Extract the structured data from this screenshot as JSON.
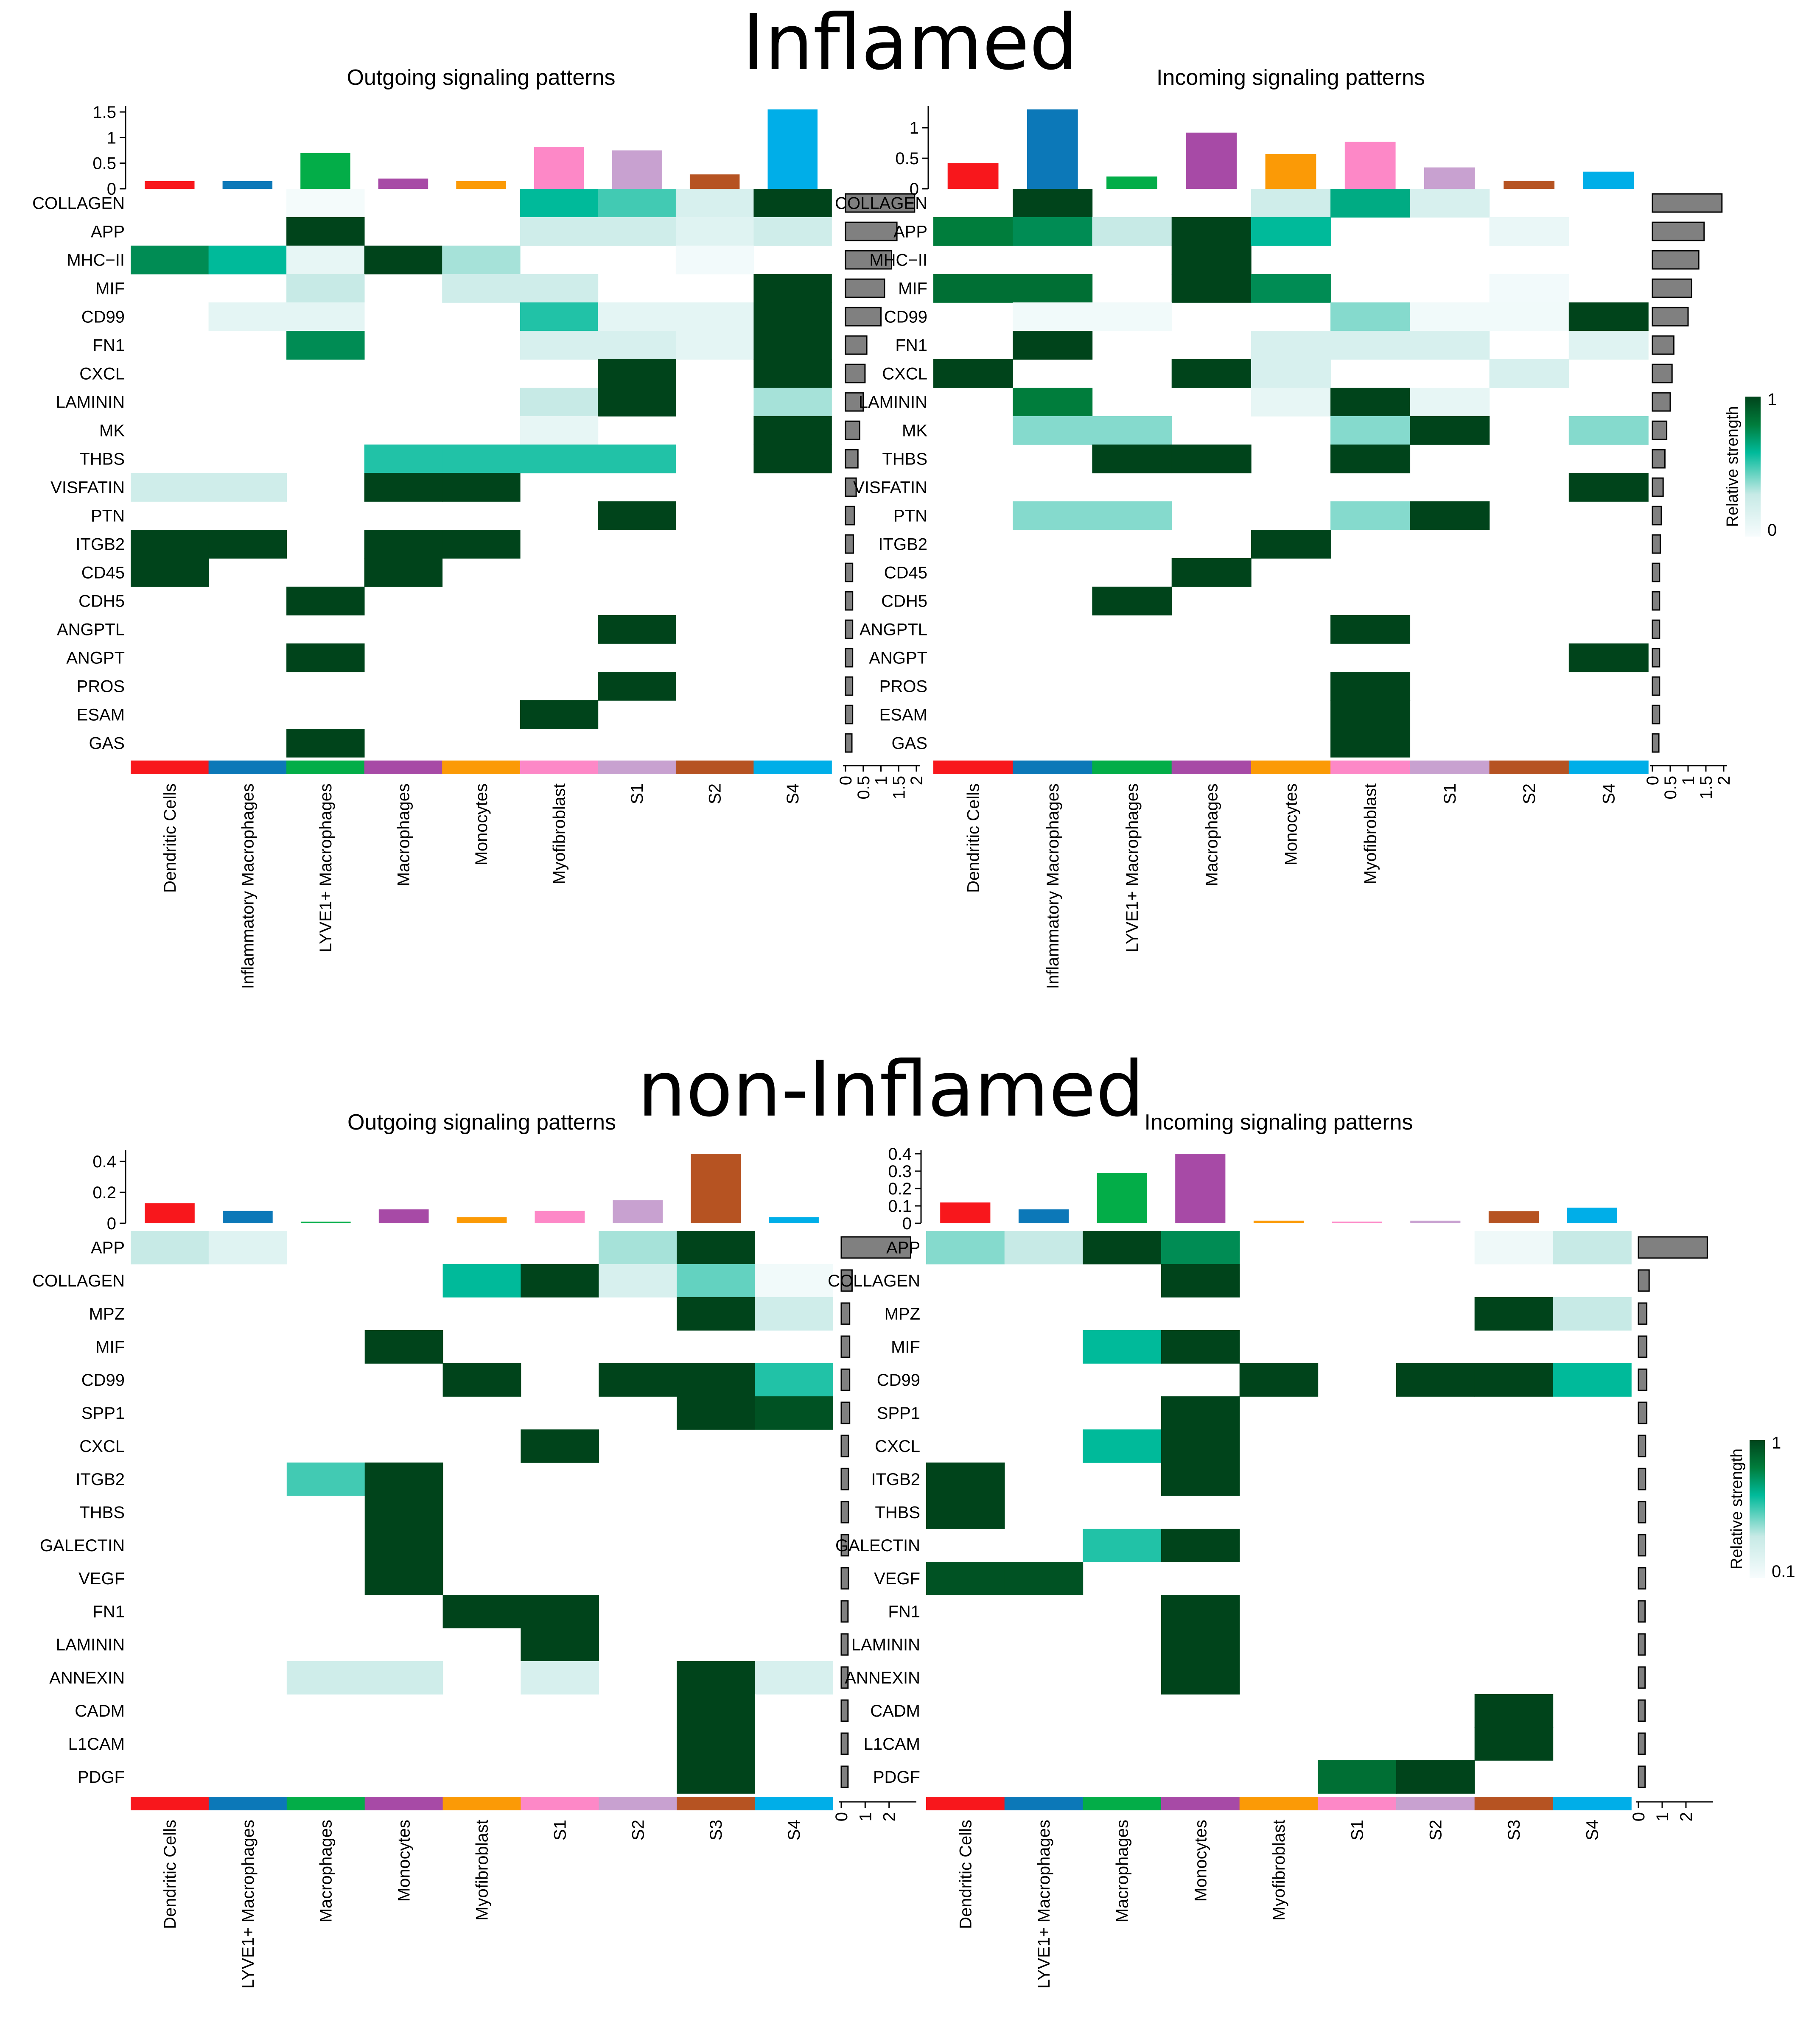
{
  "colors": {
    "scale": [
      "#F7FCFD",
      "#C7EAE6",
      "#00BA9A",
      "#007D3C",
      "#00441B"
    ],
    "row_bar": "#808080"
  },
  "chart_data": [
    {
      "id": "inflamed-outgoing",
      "section_title": "Inflamed",
      "type": "heatmap",
      "title": "Outgoing signaling patterns",
      "columns": [
        "Dendritic Cells",
        "Inflammatory Macrophages",
        "LYVE1+ Macrophages",
        "Macrophages",
        "Monocytes",
        "Myofibroblast",
        "S1",
        "S2",
        "S4"
      ],
      "column_colors": [
        "#F8171C",
        "#0C78B8",
        "#03AD48",
        "#A74AA6",
        "#FB9A06",
        "#FD88C7",
        "#C8A1D0",
        "#B65322",
        "#00AEE8"
      ],
      "col_totals": [
        0.15,
        0.15,
        0.7,
        0.2,
        0.15,
        0.82,
        0.75,
        0.28,
        1.55
      ],
      "col_axis_ticks": [
        "0",
        "0.5",
        "1",
        "1.5"
      ],
      "col_axis_max": 1.55,
      "rows": [
        "COLLAGEN",
        "APP",
        "MHC−II",
        "MIF",
        "CD99",
        "FN1",
        "CXCL",
        "LAMININ",
        "MK",
        "THBS",
        "VISFATIN",
        "PTN",
        "ITGB2",
        "CD45",
        "CDH5",
        "ANGPTL",
        "ANGPT",
        "PROS",
        "ESAM",
        "GAS"
      ],
      "row_totals": [
        1.95,
        1.45,
        1.3,
        1.1,
        1.0,
        0.6,
        0.55,
        0.5,
        0.4,
        0.35,
        0.3,
        0.25,
        0.22,
        0.2,
        0.2,
        0.2,
        0.2,
        0.2,
        0.2,
        0.18
      ],
      "row_axis_ticks": [
        "0",
        "0.5",
        "1",
        "1.5",
        "2"
      ],
      "row_axis_max": 2,
      "matrix": [
        [
          0,
          0,
          0.02,
          0,
          0,
          0.6,
          0.5,
          0.2,
          1
        ],
        [
          0,
          0,
          1,
          0,
          0,
          0.25,
          0.25,
          0.15,
          0.25
        ],
        [
          0.75,
          0.6,
          0.1,
          1,
          0.35,
          0,
          0,
          0.03,
          0
        ],
        [
          0,
          0,
          0.3,
          0,
          0.25,
          0.25,
          0,
          0,
          1
        ],
        [
          0,
          0.12,
          0.12,
          0,
          0,
          0.55,
          0.12,
          0.12,
          1
        ],
        [
          0,
          0,
          0.75,
          0,
          0,
          0.2,
          0.2,
          0.12,
          1
        ],
        [
          0,
          0,
          0,
          0,
          0,
          0,
          1,
          0,
          1
        ],
        [
          0,
          0,
          0,
          0,
          0,
          0.3,
          1,
          0,
          0.35
        ],
        [
          0,
          0,
          0,
          0,
          0,
          0.1,
          0,
          0,
          1
        ],
        [
          0,
          0,
          0,
          0.55,
          0.55,
          0.55,
          0.55,
          0,
          1
        ],
        [
          0.25,
          0.25,
          0,
          1,
          1,
          0,
          0,
          0,
          0
        ],
        [
          0,
          0,
          0,
          0,
          0,
          0,
          1,
          0,
          0
        ],
        [
          1,
          1,
          0,
          1,
          1,
          0,
          0,
          0,
          0
        ],
        [
          1,
          0,
          0,
          1,
          0,
          0,
          0,
          0,
          0
        ],
        [
          0,
          0,
          1,
          0,
          0,
          0,
          0,
          0,
          0
        ],
        [
          0,
          0,
          0,
          0,
          0,
          0,
          1,
          0,
          0
        ],
        [
          0,
          0,
          1,
          0,
          0,
          0,
          0,
          0,
          0
        ],
        [
          0,
          0,
          0,
          0,
          0,
          0,
          1,
          0,
          0
        ],
        [
          0,
          0,
          0,
          0,
          0,
          1,
          0,
          0,
          0
        ],
        [
          0,
          0,
          1,
          0,
          0,
          0,
          0,
          0,
          0
        ]
      ]
    },
    {
      "id": "inflamed-incoming",
      "type": "heatmap",
      "title": "Incoming signaling patterns",
      "columns": [
        "Dendritic Cells",
        "Inflammatory Macrophages",
        "LYVE1+ Macrophages",
        "Macrophages",
        "Monocytes",
        "Myofibroblast",
        "S1",
        "S2",
        "S4"
      ],
      "column_colors": [
        "#F8171C",
        "#0C78B8",
        "#03AD48",
        "#A74AA6",
        "#FB9A06",
        "#FD88C7",
        "#C8A1D0",
        "#B65322",
        "#00AEE8"
      ],
      "col_totals": [
        0.42,
        1.3,
        0.2,
        0.92,
        0.57,
        0.77,
        0.35,
        0.13,
        0.28
      ],
      "col_axis_ticks": [
        "0",
        "0.5",
        "1"
      ],
      "col_axis_max": 1.3,
      "rows": [
        "COLLAGEN",
        "APP",
        "MHC−II",
        "MIF",
        "CD99",
        "FN1",
        "CXCL",
        "LAMININ",
        "MK",
        "THBS",
        "VISFATIN",
        "PTN",
        "ITGB2",
        "CD45",
        "CDH5",
        "ANGPTL",
        "ANGPT",
        "PROS",
        "ESAM",
        "GAS"
      ],
      "row_totals": [
        1.95,
        1.45,
        1.3,
        1.1,
        1.0,
        0.6,
        0.55,
        0.5,
        0.4,
        0.35,
        0.3,
        0.25,
        0.22,
        0.2,
        0.2,
        0.2,
        0.2,
        0.2,
        0.2,
        0.18
      ],
      "row_axis_ticks": [
        "0",
        "0.5",
        "1",
        "1.5",
        "2"
      ],
      "row_axis_max": 2,
      "matrix": [
        [
          0,
          1,
          0,
          0,
          0.25,
          0.65,
          0.2,
          0,
          0
        ],
        [
          0.8,
          0.75,
          0.3,
          1,
          0.6,
          0,
          0,
          0.08,
          0
        ],
        [
          0,
          0,
          0,
          1,
          0,
          0,
          0,
          0,
          0
        ],
        [
          0.85,
          0.85,
          0,
          1,
          0.75,
          0,
          0,
          0.03,
          0
        ],
        [
          0,
          0.04,
          0.04,
          0,
          0,
          0.4,
          0.04,
          0.04,
          1
        ],
        [
          0,
          1,
          0,
          0,
          0.2,
          0.2,
          0.2,
          0,
          0.15
        ],
        [
          1,
          0,
          0,
          1,
          0.2,
          0,
          0,
          0.2,
          0
        ],
        [
          0,
          0.8,
          0,
          0,
          0.1,
          1,
          0.1,
          0,
          0
        ],
        [
          0,
          0.4,
          0.4,
          0,
          0,
          0.4,
          1,
          0,
          0.4
        ],
        [
          0,
          0,
          1,
          1,
          0,
          1,
          0,
          0,
          0
        ],
        [
          0,
          0,
          0,
          0,
          0,
          0,
          0,
          0,
          1
        ],
        [
          0,
          0.4,
          0.4,
          0,
          0,
          0.4,
          1,
          0,
          0
        ],
        [
          0,
          0,
          0,
          0,
          1,
          0,
          0,
          0,
          0
        ],
        [
          0,
          0,
          0,
          1,
          0,
          0,
          0,
          0,
          0
        ],
        [
          0,
          0,
          1,
          0,
          0,
          0,
          0,
          0,
          0
        ],
        [
          0,
          0,
          0,
          0,
          0,
          1,
          0,
          0,
          0
        ],
        [
          0,
          0,
          0,
          0,
          0,
          0,
          0,
          0,
          1
        ],
        [
          0,
          0,
          0,
          0,
          0,
          1,
          0,
          0,
          0
        ],
        [
          0,
          0,
          0,
          0,
          0,
          1,
          0,
          0,
          0
        ],
        [
          0,
          0,
          0,
          0,
          0,
          1,
          0,
          0,
          0
        ]
      ],
      "legend": {
        "title": "Relative strength",
        "max_label": "1",
        "min_label": "0"
      }
    },
    {
      "id": "noninflamed-outgoing",
      "section_title": "non-Inflamed",
      "type": "heatmap",
      "title": "Outgoing signaling patterns",
      "columns": [
        "Dendritic Cells",
        "LYVE1+ Macrophages",
        "Macrophages",
        "Monocytes",
        "Myofibroblast",
        "S1",
        "S2",
        "S3",
        "S4"
      ],
      "column_colors": [
        "#F8171C",
        "#0C78B8",
        "#03AD48",
        "#A74AA6",
        "#FB9A06",
        "#FD88C7",
        "#C8A1D0",
        "#B65322",
        "#00AEE8"
      ],
      "col_totals": [
        0.13,
        0.08,
        0.01,
        0.09,
        0.04,
        0.08,
        0.15,
        0.45,
        0.04
      ],
      "col_axis_ticks": [
        "0",
        "0.2",
        "0.4"
      ],
      "col_axis_max": 0.45,
      "rows": [
        "APP",
        "COLLAGEN",
        "MPZ",
        "MIF",
        "CD99",
        "SPP1",
        "CXCL",
        "ITGB2",
        "THBS",
        "GALECTIN",
        "VEGF",
        "FN1",
        "LAMININ",
        "ANNEXIN",
        "CADM",
        "L1CAM",
        "PDGF"
      ],
      "row_totals": [
        2.9,
        0.45,
        0.35,
        0.35,
        0.35,
        0.35,
        0.3,
        0.3,
        0.3,
        0.3,
        0.3,
        0.28,
        0.28,
        0.28,
        0.28,
        0.28,
        0.28
      ],
      "row_axis_ticks": [
        "0",
        "1",
        "2"
      ],
      "row_axis_max": 3,
      "matrix": [
        [
          0.3,
          0.15,
          0,
          0,
          0,
          0,
          0.35,
          1,
          0
        ],
        [
          0,
          0,
          0,
          0,
          0.6,
          1,
          0.2,
          0.45,
          0.04
        ],
        [
          0,
          0,
          0,
          0,
          0,
          0,
          0,
          1,
          0.25
        ],
        [
          0,
          0,
          0,
          1,
          0,
          0,
          0,
          0,
          0
        ],
        [
          0,
          0,
          0,
          0,
          1,
          0,
          1,
          1,
          0.55
        ],
        [
          0,
          0,
          0,
          0,
          0,
          0,
          0,
          1,
          0.95
        ],
        [
          0,
          0,
          0,
          0,
          0,
          1,
          0,
          0,
          0
        ],
        [
          0,
          0,
          0.5,
          1,
          0,
          0,
          0,
          0,
          0
        ],
        [
          0,
          0,
          0,
          1,
          0,
          0,
          0,
          0,
          0
        ],
        [
          0,
          0,
          0,
          1,
          0,
          0,
          0,
          0,
          0
        ],
        [
          0,
          0,
          0,
          1,
          0,
          0,
          0,
          0,
          0
        ],
        [
          0,
          0,
          0,
          0,
          1,
          1,
          0,
          0,
          0
        ],
        [
          0,
          0,
          0,
          0,
          0,
          1,
          0,
          0,
          0
        ],
        [
          0,
          0,
          0.25,
          0.25,
          0,
          0.2,
          0,
          1,
          0.2
        ],
        [
          0,
          0,
          0,
          0,
          0,
          0,
          0,
          1,
          0
        ],
        [
          0,
          0,
          0,
          0,
          0,
          0,
          0,
          1,
          0
        ],
        [
          0,
          0,
          0,
          0,
          0,
          0,
          0,
          1,
          0
        ]
      ]
    },
    {
      "id": "noninflamed-incoming",
      "type": "heatmap",
      "title": "Incoming signaling patterns",
      "columns": [
        "Dendritic Cells",
        "LYVE1+ Macrophages",
        "Macrophages",
        "Monocytes",
        "Myofibroblast",
        "S1",
        "S2",
        "S3",
        "S4"
      ],
      "column_colors": [
        "#F8171C",
        "#0C78B8",
        "#03AD48",
        "#A74AA6",
        "#FB9A06",
        "#FD88C7",
        "#C8A1D0",
        "#B65322",
        "#00AEE8"
      ],
      "col_totals": [
        0.12,
        0.08,
        0.29,
        0.4,
        0.015,
        0.01,
        0.015,
        0.07,
        0.09
      ],
      "col_axis_ticks": [
        "0",
        "0.1",
        "0.2",
        "0.3",
        "0.4"
      ],
      "col_axis_max": 0.4,
      "rows": [
        "APP",
        "COLLAGEN",
        "MPZ",
        "MIF",
        "CD99",
        "SPP1",
        "CXCL",
        "ITGB2",
        "THBS",
        "GALECTIN",
        "VEGF",
        "FN1",
        "LAMININ",
        "ANNEXIN",
        "CADM",
        "L1CAM",
        "PDGF"
      ],
      "row_totals": [
        2.9,
        0.45,
        0.35,
        0.35,
        0.35,
        0.35,
        0.3,
        0.3,
        0.3,
        0.3,
        0.3,
        0.28,
        0.28,
        0.28,
        0.28,
        0.28,
        0.28
      ],
      "row_axis_ticks": [
        "0",
        "1",
        "2"
      ],
      "row_axis_max": 3,
      "matrix": [
        [
          0.4,
          0.3,
          1,
          0.75,
          0,
          0,
          0,
          0.05,
          0.3
        ],
        [
          0,
          0,
          0,
          1,
          0,
          0,
          0,
          0,
          0
        ],
        [
          0,
          0,
          0,
          0,
          0,
          0,
          0,
          1,
          0.3
        ],
        [
          0,
          0,
          0.6,
          1,
          0,
          0,
          0,
          0,
          0
        ],
        [
          0,
          0,
          0,
          0,
          1,
          0,
          1,
          1,
          0.6
        ],
        [
          0,
          0,
          0,
          1,
          0,
          0,
          0,
          0,
          0
        ],
        [
          0,
          0,
          0.6,
          1,
          0,
          0,
          0,
          0,
          0
        ],
        [
          1,
          0,
          0,
          1,
          0,
          0,
          0,
          0,
          0
        ],
        [
          1,
          0,
          0,
          0,
          0,
          0,
          0,
          0,
          0
        ],
        [
          0,
          0,
          0.55,
          1,
          0,
          0,
          0,
          0,
          0
        ],
        [
          0.95,
          0.95,
          0,
          0,
          0,
          0,
          0,
          0,
          0
        ],
        [
          0,
          0,
          0,
          1,
          0,
          0,
          0,
          0,
          0
        ],
        [
          0,
          0,
          0,
          1,
          0,
          0,
          0,
          0,
          0
        ],
        [
          0,
          0,
          0,
          1,
          0,
          0,
          0,
          0,
          0
        ],
        [
          0,
          0,
          0,
          0,
          0,
          0,
          0,
          1,
          0
        ],
        [
          0,
          0,
          0,
          0,
          0,
          0,
          0,
          1,
          0
        ],
        [
          0,
          0,
          0,
          0,
          0,
          0.85,
          1,
          0,
          0
        ]
      ],
      "legend": {
        "title": "Relative strength",
        "max_label": "1",
        "min_label": "0.1"
      }
    }
  ]
}
